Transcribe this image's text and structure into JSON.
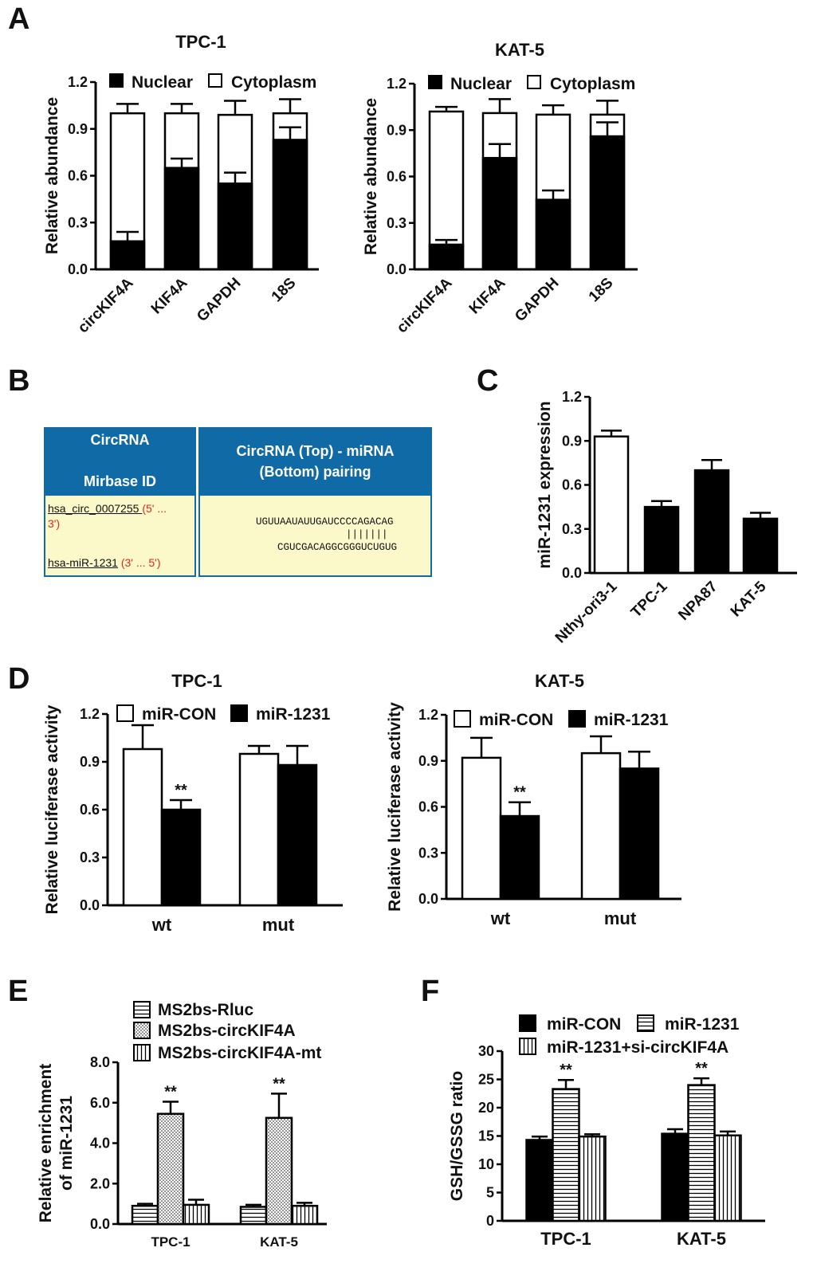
{
  "panels": {
    "A": "A",
    "B": "B",
    "C": "C",
    "D": "D",
    "E": "E",
    "F": "F"
  },
  "panel_b": {
    "header_col1_line1": "CircRNA",
    "header_col1_line2": "Mirbase ID",
    "header_col2_line1": "CircRNA (Top) - miRNA",
    "header_col2_line2": "(Bottom) pairing",
    "circ_id": "hsa_circ_0007255",
    "circ_dir_a": "(5' ...",
    "circ_dir_b": "3')",
    "mir_id": "hsa-miR-1231",
    "mir_dir": "(3' ... 5')",
    "seq_top": "UGUUAAUAUUGAUCCCCAGACAG",
    "seq_pairs": "|||||||",
    "seq_bottom": "CGUCGACAGGCGGGUCUGUG"
  },
  "colors": {
    "black": "#000000",
    "white": "#ffffff"
  },
  "chart_data": [
    {
      "id": "A-TPC1",
      "type": "bar",
      "stacked": true,
      "title": "TPC-1",
      "ylabel": "Relative abundance",
      "xlabel": "",
      "ylim": [
        0,
        1.2
      ],
      "yticks": [
        "0.0",
        "0.3",
        "0.6",
        "0.9",
        "1.2"
      ],
      "categories": [
        "circKIF4A",
        "KIF4A",
        "GAPDH",
        "18S"
      ],
      "series": [
        {
          "name": "Nuclear",
          "fill": "solid-black",
          "values": [
            0.18,
            0.65,
            0.55,
            0.83
          ],
          "errors": [
            0.06,
            0.06,
            0.07,
            0.08
          ]
        },
        {
          "name": "Cytoplasm",
          "fill": "white",
          "values": [
            0.82,
            0.35,
            0.44,
            0.17
          ],
          "errors": [
            0.06,
            0.06,
            0.09,
            0.09
          ]
        }
      ],
      "legend": "top"
    },
    {
      "id": "A-KAT5",
      "type": "bar",
      "stacked": true,
      "title": "KAT-5",
      "ylabel": "Relative abundance",
      "xlabel": "",
      "ylim": [
        0,
        1.2
      ],
      "yticks": [
        "0.0",
        "0.3",
        "0.6",
        "0.9",
        "1.2"
      ],
      "categories": [
        "circKIF4A",
        "KIF4A",
        "GAPDH",
        "18S"
      ],
      "series": [
        {
          "name": "Nuclear",
          "fill": "solid-black",
          "values": [
            0.16,
            0.72,
            0.45,
            0.86
          ],
          "errors": [
            0.03,
            0.09,
            0.06,
            0.09
          ]
        },
        {
          "name": "Cytoplasm",
          "fill": "white",
          "values": [
            0.86,
            0.29,
            0.55,
            0.14
          ],
          "errors": [
            0.03,
            0.09,
            0.06,
            0.09
          ]
        }
      ],
      "legend": "top"
    },
    {
      "id": "C",
      "type": "bar",
      "title": "",
      "ylabel": "miR-1231 expression",
      "xlabel": "",
      "ylim": [
        0,
        1.2
      ],
      "yticks": [
        "0.0",
        "0.3",
        "0.6",
        "0.9",
        "1.2"
      ],
      "categories": [
        "Nthy-ori3-1",
        "TPC-1",
        "NPA87",
        "KAT-5"
      ],
      "values": [
        0.93,
        0.45,
        0.7,
        0.37
      ],
      "errors": [
        0.04,
        0.04,
        0.07,
        0.04
      ],
      "fills": [
        "white",
        "solid-black",
        "solid-black",
        "solid-black"
      ]
    },
    {
      "id": "D-TPC1",
      "type": "bar",
      "title": "TPC-1",
      "ylabel": "Relative luciferase activity",
      "xlabel": "",
      "ylim": [
        0,
        1.2
      ],
      "yticks": [
        "0.0",
        "0.3",
        "0.6",
        "0.9",
        "1.2"
      ],
      "categories": [
        "wt",
        "mut"
      ],
      "series": [
        {
          "name": "miR-CON",
          "fill": "white",
          "values": [
            0.98,
            0.95
          ],
          "errors": [
            0.15,
            0.05
          ]
        },
        {
          "name": "miR-1231",
          "fill": "solid-black",
          "values": [
            0.6,
            0.88
          ],
          "errors": [
            0.06,
            0.12
          ]
        }
      ],
      "annotations": [
        {
          "series": 1,
          "index": 0,
          "text": "**"
        }
      ],
      "legend": "top"
    },
    {
      "id": "D-KAT5",
      "type": "bar",
      "title": "KAT-5",
      "ylabel": "Relative luciferase activity",
      "xlabel": "",
      "ylim": [
        0,
        1.2
      ],
      "yticks": [
        "0.0",
        "0.3",
        "0.6",
        "0.9",
        "1.2"
      ],
      "categories": [
        "wt",
        "mut"
      ],
      "series": [
        {
          "name": "miR-CON",
          "fill": "white",
          "values": [
            0.92,
            0.95
          ],
          "errors": [
            0.13,
            0.11
          ]
        },
        {
          "name": "miR-1231",
          "fill": "solid-black",
          "values": [
            0.54,
            0.85
          ],
          "errors": [
            0.09,
            0.11
          ]
        }
      ],
      "annotations": [
        {
          "series": 1,
          "index": 0,
          "text": "**"
        }
      ],
      "legend": "top"
    },
    {
      "id": "E",
      "type": "bar",
      "title": "",
      "ylabel": "Relative enrichment of miR-1231",
      "xlabel": "",
      "ylim": [
        0,
        8
      ],
      "yticks": [
        "0.0",
        "2.0",
        "4.0",
        "6.0",
        "8.0"
      ],
      "categories": [
        "TPC-1",
        "KAT-5"
      ],
      "series": [
        {
          "name": "MS2bs-Rluc",
          "fill": "horizontal-stripes",
          "values": [
            0.9,
            0.85
          ],
          "errors": [
            0.1,
            0.1
          ]
        },
        {
          "name": "MS2bs-circKIF4A",
          "fill": "dots",
          "values": [
            5.45,
            5.25
          ],
          "errors": [
            0.6,
            1.2
          ]
        },
        {
          "name": "MS2bs-circKIF4A-mt",
          "fill": "vertical-stripes",
          "values": [
            0.95,
            0.9
          ],
          "errors": [
            0.25,
            0.15
          ]
        }
      ],
      "annotations": [
        {
          "series": 1,
          "index": 0,
          "text": "**"
        },
        {
          "series": 1,
          "index": 1,
          "text": "**"
        }
      ],
      "legend": "top"
    },
    {
      "id": "F",
      "type": "bar",
      "title": "",
      "ylabel": "GSH/GSSG ratio",
      "xlabel": "",
      "ylim": [
        0,
        30
      ],
      "yticks": [
        "0",
        "5",
        "10",
        "15",
        "20",
        "25",
        "30"
      ],
      "categories": [
        "TPC-1",
        "KAT-5"
      ],
      "series": [
        {
          "name": "miR-CON",
          "fill": "solid-black",
          "values": [
            14.3,
            15.4
          ],
          "errors": [
            0.6,
            0.8
          ]
        },
        {
          "name": "miR-1231",
          "fill": "horizontal-stripes",
          "values": [
            23.3,
            24.0
          ],
          "errors": [
            1.6,
            1.2
          ]
        },
        {
          "name": "miR-1231+si-circKIF4A",
          "fill": "vertical-stripes",
          "values": [
            14.9,
            15.1
          ],
          "errors": [
            0.4,
            0.7
          ]
        }
      ],
      "annotations": [
        {
          "series": 1,
          "index": 0,
          "text": "**"
        },
        {
          "series": 1,
          "index": 1,
          "text": "**"
        }
      ],
      "legend": "top"
    }
  ]
}
